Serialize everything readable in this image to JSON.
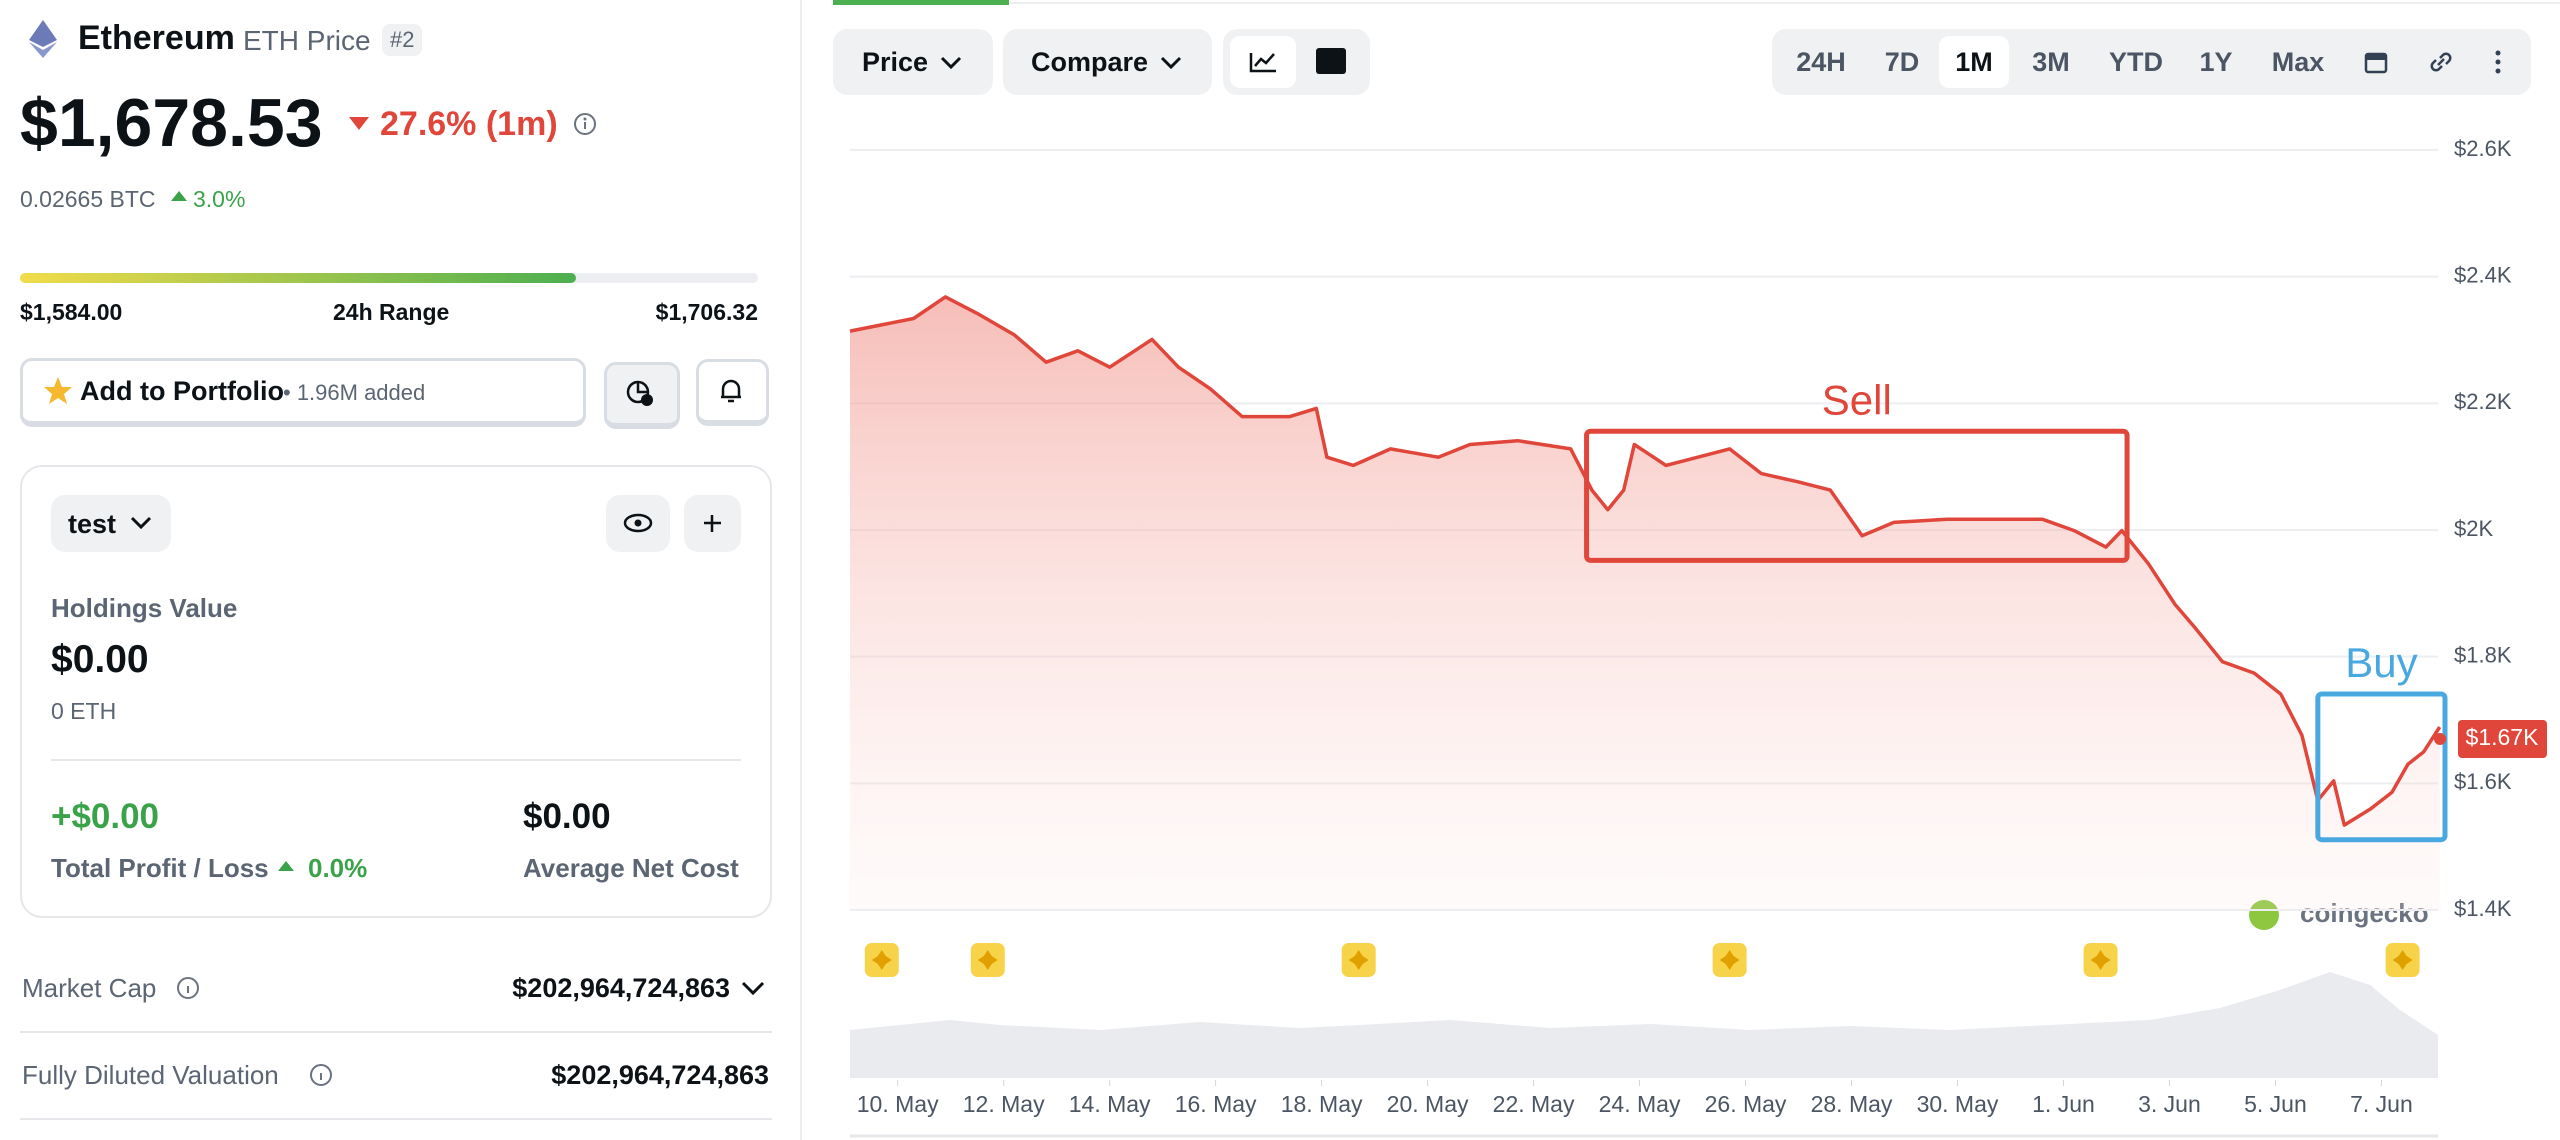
{
  "header": {
    "name": "Ethereum",
    "subtitle": "ETH Price",
    "rank": "#2"
  },
  "price": {
    "value": "$1,678.53",
    "change": "27.6% (1m)",
    "btc": "0.02665 BTC",
    "btc_change": "3.0%"
  },
  "range": {
    "low": "$1,584.00",
    "label": "24h Range",
    "high": "$1,706.32"
  },
  "portfolio_button": {
    "label": "Add to Portfolio",
    "added": "• 1.96M added"
  },
  "portfolio": {
    "name": "test",
    "holdings_label": "Holdings Value",
    "holdings_value": "$0.00",
    "holdings_amount": "0 ETH",
    "pl_value": "+$0.00",
    "pl_label": "Total Profit / Loss",
    "pl_change": "0.0%",
    "avg_value": "$0.00",
    "avg_label": "Average Net Cost"
  },
  "stats": [
    {
      "label": "Market Cap",
      "value": "$202,964,724,863"
    },
    {
      "label": "Fully Diluted Valuation",
      "value": "$202,964,724,863"
    }
  ],
  "toolbar": {
    "price": "Price",
    "compare": "Compare",
    "ranges": [
      "24H",
      "7D",
      "1M",
      "3M",
      "YTD",
      "1Y",
      "Max"
    ],
    "active_range": 2
  },
  "watermark": "coingecko",
  "chart_data": {
    "type": "line",
    "color": "#e0463a",
    "x": [
      -0.9,
      0.3,
      0.9,
      1.5,
      2.2,
      2.8,
      3.4,
      4.0,
      4.8,
      5.3,
      5.9,
      6.5,
      7.4,
      7.9,
      8.1,
      8.6,
      9.3,
      10.2,
      10.8,
      11.7,
      12.7,
      13.1,
      13.4,
      13.7,
      13.9,
      14.5,
      15.1,
      15.7,
      16.3,
      17.0,
      17.6,
      18.2,
      18.8,
      19.8,
      20.7,
      21.6,
      22.2,
      22.8,
      23.1,
      23.6,
      24.1,
      24.5,
      25.0,
      25.6,
      26.1,
      26.5,
      26.8,
      27.1,
      27.3,
      27.8,
      28.2,
      28.5,
      28.8,
      29.1
    ],
    "values": [
      2314,
      2334,
      2368,
      2342,
      2308,
      2265,
      2283,
      2257,
      2301,
      2257,
      2223,
      2179,
      2179,
      2192,
      2115,
      2102,
      2128,
      2115,
      2135,
      2141,
      2128,
      2063,
      2032,
      2063,
      2135,
      2102,
      2115,
      2128,
      2089,
      2076,
      2063,
      1991,
      2012,
      2017,
      2017,
      2017,
      1999,
      1973,
      1999,
      1947,
      1883,
      1844,
      1792,
      1774,
      1741,
      1676,
      1573,
      1604,
      1534,
      1560,
      1586,
      1630,
      1650,
      1689
    ],
    "xlim": [
      -0.9,
      29.2
    ],
    "xticks": [
      {
        "value": 0,
        "label": "10. May"
      },
      {
        "value": 2,
        "label": "12. May"
      },
      {
        "value": 4,
        "label": "14. May"
      },
      {
        "value": 6,
        "label": "16. May"
      },
      {
        "value": 8,
        "label": "18. May"
      },
      {
        "value": 10,
        "label": "20. May"
      },
      {
        "value": 12,
        "label": "22. May"
      },
      {
        "value": 14,
        "label": "24. May"
      },
      {
        "value": 16,
        "label": "26. May"
      },
      {
        "value": 18,
        "label": "28. May"
      },
      {
        "value": 20,
        "label": "30. May"
      },
      {
        "value": 22,
        "label": "1. Jun"
      },
      {
        "value": 24,
        "label": "3. Jun"
      },
      {
        "value": 26,
        "label": "5. Jun"
      },
      {
        "value": 28,
        "label": "7. Jun"
      }
    ],
    "ylim": [
      1400,
      2600
    ],
    "yticks": [
      {
        "value": 1400,
        "label": "$1.4K"
      },
      {
        "value": 1600,
        "label": "$1.6K"
      },
      {
        "value": 1800,
        "label": "$1.8K"
      },
      {
        "value": 2000,
        "label": "$2K"
      },
      {
        "value": 2200,
        "label": "$2.2K"
      },
      {
        "value": 2400,
        "label": "$2.4K"
      },
      {
        "value": 2600,
        "label": "$2.6K"
      }
    ],
    "grid": true,
    "price_label": {
      "value": 1670,
      "label": "$1.67K"
    },
    "annotations": [
      {
        "text": "Sell",
        "color": "#e0463a",
        "x": [
          13.0,
          23.2
        ],
        "y": [
          1952,
          2156
        ]
      },
      {
        "text": "Buy",
        "color": "#4aa8e0",
        "x": [
          26.8,
          29.2
        ],
        "y": [
          1511,
          1741
        ]
      }
    ],
    "events": [
      -0.3,
      1.7,
      8.7,
      15.7,
      22.7,
      28.4
    ]
  }
}
